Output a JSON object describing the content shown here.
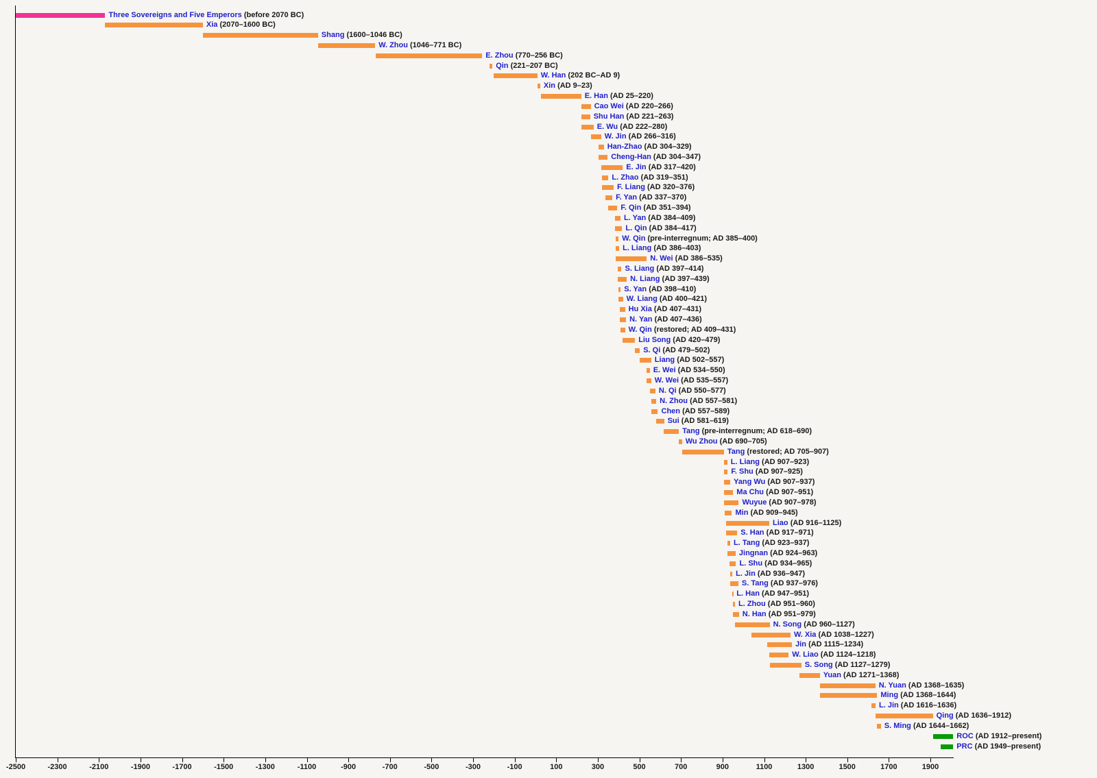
{
  "chart_data": {
    "type": "bar",
    "subtype": "horizontal-timeline-gantt",
    "description": "Timeline of Chinese dynasties",
    "x_axis": {
      "min": -2500,
      "max": 2010,
      "tick_interval": 200,
      "ticks": [
        -2500,
        -2300,
        -2100,
        -1900,
        -1700,
        -1500,
        -1300,
        -1100,
        -900,
        -700,
        -500,
        -300,
        -100,
        100,
        300,
        500,
        700,
        900,
        1100,
        1300,
        1500,
        1700,
        1900
      ]
    },
    "legend_position": "none",
    "grid": false,
    "colors": {
      "bar_orange": "#F6943E",
      "bar_pink": "#F23197",
      "bar_green": "#0A9A0A",
      "name_text": "#2121CC",
      "date_text": "#191919",
      "axis": "#000000",
      "tick_text": "#1A1A1A",
      "background": "#F6F5F2"
    },
    "entries": [
      {
        "name": "Three Sovereigns and Five Emperors",
        "dates": "(before 2070 BC)",
        "start": -2500,
        "end": -2070,
        "color": "pink"
      },
      {
        "name": "Xia",
        "dates": "(2070–1600 BC)",
        "start": -2070,
        "end": -1600,
        "color": "orange"
      },
      {
        "name": "Shang",
        "dates": "(1600–1046 BC)",
        "start": -1600,
        "end": -1046,
        "color": "orange"
      },
      {
        "name": "W. Zhou",
        "dates": "(1046–771 BC)",
        "start": -1046,
        "end": -771,
        "color": "orange"
      },
      {
        "name": "E. Zhou",
        "dates": "(770–256 BC)",
        "start": -770,
        "end": -256,
        "color": "orange"
      },
      {
        "name": "Qin",
        "dates": "(221–207 BC)",
        "start": -221,
        "end": -207,
        "color": "orange"
      },
      {
        "name": "W. Han",
        "dates": "(202 BC–AD 9)",
        "start": -202,
        "end": 9,
        "color": "orange"
      },
      {
        "name": "Xin",
        "dates": "(AD 9–23)",
        "start": 9,
        "end": 23,
        "color": "orange"
      },
      {
        "name": "E. Han",
        "dates": "(AD 25–220)",
        "start": 25,
        "end": 220,
        "color": "orange"
      },
      {
        "name": "Cao Wei",
        "dates": "(AD 220–266)",
        "start": 220,
        "end": 266,
        "color": "orange"
      },
      {
        "name": "Shu Han",
        "dates": "(AD 221–263)",
        "start": 221,
        "end": 263,
        "color": "orange"
      },
      {
        "name": "E. Wu",
        "dates": "(AD 222–280)",
        "start": 222,
        "end": 280,
        "color": "orange"
      },
      {
        "name": "W. Jin",
        "dates": "(AD 266–316)",
        "start": 266,
        "end": 316,
        "color": "orange"
      },
      {
        "name": "Han-Zhao",
        "dates": "(AD 304–329)",
        "start": 304,
        "end": 329,
        "color": "orange"
      },
      {
        "name": "Cheng-Han",
        "dates": "(AD 304–347)",
        "start": 304,
        "end": 347,
        "color": "orange"
      },
      {
        "name": "E. Jin",
        "dates": "(AD 317–420)",
        "start": 317,
        "end": 420,
        "color": "orange"
      },
      {
        "name": "L. Zhao",
        "dates": "(AD 319–351)",
        "start": 319,
        "end": 351,
        "color": "orange"
      },
      {
        "name": "F. Liang",
        "dates": "(AD 320–376)",
        "start": 320,
        "end": 376,
        "color": "orange"
      },
      {
        "name": "F. Yan",
        "dates": "(AD 337–370)",
        "start": 337,
        "end": 370,
        "color": "orange"
      },
      {
        "name": "F. Qin",
        "dates": "(AD 351–394)",
        "start": 351,
        "end": 394,
        "color": "orange"
      },
      {
        "name": "L. Yan",
        "dates": "(AD 384–409)",
        "start": 384,
        "end": 409,
        "color": "orange"
      },
      {
        "name": "L. Qin",
        "dates": "(AD 384–417)",
        "start": 384,
        "end": 417,
        "color": "orange"
      },
      {
        "name": "W. Qin",
        "dates": "(pre-interregnum; AD 385–400)",
        "start": 385,
        "end": 400,
        "color": "orange"
      },
      {
        "name": "L. Liang",
        "dates": "(AD 386–403)",
        "start": 386,
        "end": 403,
        "color": "orange"
      },
      {
        "name": "N. Wei",
        "dates": "(AD 386–535)",
        "start": 386,
        "end": 535,
        "color": "orange"
      },
      {
        "name": "S. Liang",
        "dates": "(AD 397–414)",
        "start": 397,
        "end": 414,
        "color": "orange"
      },
      {
        "name": "N. Liang",
        "dates": "(AD 397–439)",
        "start": 397,
        "end": 439,
        "color": "orange"
      },
      {
        "name": "S. Yan",
        "dates": "(AD 398–410)",
        "start": 398,
        "end": 410,
        "color": "orange"
      },
      {
        "name": "W. Liang",
        "dates": "(AD 400–421)",
        "start": 400,
        "end": 421,
        "color": "orange"
      },
      {
        "name": "Hu Xia",
        "dates": "(AD 407–431)",
        "start": 407,
        "end": 431,
        "color": "orange"
      },
      {
        "name": "N. Yan",
        "dates": "(AD 407–436)",
        "start": 407,
        "end": 436,
        "color": "orange"
      },
      {
        "name": "W. Qin",
        "dates": "(restored; AD 409–431)",
        "start": 409,
        "end": 431,
        "color": "orange"
      },
      {
        "name": "Liu Song",
        "dates": "(AD 420–479)",
        "start": 420,
        "end": 479,
        "color": "orange"
      },
      {
        "name": "S. Qi",
        "dates": "(AD 479–502)",
        "start": 479,
        "end": 502,
        "color": "orange"
      },
      {
        "name": "Liang",
        "dates": "(AD 502–557)",
        "start": 502,
        "end": 557,
        "color": "orange"
      },
      {
        "name": "E. Wei",
        "dates": "(AD 534–550)",
        "start": 534,
        "end": 550,
        "color": "orange"
      },
      {
        "name": "W. Wei",
        "dates": "(AD 535–557)",
        "start": 535,
        "end": 557,
        "color": "orange"
      },
      {
        "name": "N. Qi",
        "dates": "(AD 550–577)",
        "start": 550,
        "end": 577,
        "color": "orange"
      },
      {
        "name": "N. Zhou",
        "dates": "(AD 557–581)",
        "start": 557,
        "end": 581,
        "color": "orange"
      },
      {
        "name": "Chen",
        "dates": "(AD 557–589)",
        "start": 557,
        "end": 589,
        "color": "orange"
      },
      {
        "name": "Sui",
        "dates": "(AD 581–619)",
        "start": 581,
        "end": 619,
        "color": "orange"
      },
      {
        "name": "Tang",
        "dates": "(pre-interregnum; AD 618–690)",
        "start": 618,
        "end": 690,
        "color": "orange"
      },
      {
        "name": "Wu Zhou",
        "dates": "(AD 690–705)",
        "start": 690,
        "end": 705,
        "color": "orange"
      },
      {
        "name": "Tang",
        "dates": "(restored; AD 705–907)",
        "start": 705,
        "end": 907,
        "color": "orange"
      },
      {
        "name": "L. Liang",
        "dates": "(AD 907–923)",
        "start": 907,
        "end": 923,
        "color": "orange"
      },
      {
        "name": "F. Shu",
        "dates": "(AD 907–925)",
        "start": 907,
        "end": 925,
        "color": "orange"
      },
      {
        "name": "Yang Wu",
        "dates": "(AD 907–937)",
        "start": 907,
        "end": 937,
        "color": "orange"
      },
      {
        "name": "Ma Chu",
        "dates": "(AD 907–951)",
        "start": 907,
        "end": 951,
        "color": "orange"
      },
      {
        "name": "Wuyue",
        "dates": "(AD 907–978)",
        "start": 907,
        "end": 978,
        "color": "orange"
      },
      {
        "name": "Min",
        "dates": "(AD 909–945)",
        "start": 909,
        "end": 945,
        "color": "orange"
      },
      {
        "name": "Liao",
        "dates": "(AD 916–1125)",
        "start": 916,
        "end": 1125,
        "color": "orange"
      },
      {
        "name": "S. Han",
        "dates": "(AD 917–971)",
        "start": 917,
        "end": 971,
        "color": "orange"
      },
      {
        "name": "L. Tang",
        "dates": "(AD 923–937)",
        "start": 923,
        "end": 937,
        "color": "orange"
      },
      {
        "name": "Jingnan",
        "dates": "(AD 924–963)",
        "start": 924,
        "end": 963,
        "color": "orange"
      },
      {
        "name": "L. Shu",
        "dates": "(AD 934–965)",
        "start": 934,
        "end": 965,
        "color": "orange"
      },
      {
        "name": "L. Jin",
        "dates": "(AD 936–947)",
        "start": 936,
        "end": 947,
        "color": "orange"
      },
      {
        "name": "S. Tang",
        "dates": "(AD 937–976)",
        "start": 937,
        "end": 976,
        "color": "orange"
      },
      {
        "name": "L. Han",
        "dates": "(AD 947–951)",
        "start": 947,
        "end": 951,
        "color": "orange"
      },
      {
        "name": "L. Zhou",
        "dates": "(AD 951–960)",
        "start": 951,
        "end": 960,
        "color": "orange"
      },
      {
        "name": "N. Han",
        "dates": "(AD 951–979)",
        "start": 951,
        "end": 979,
        "color": "orange"
      },
      {
        "name": "N. Song",
        "dates": "(AD 960–1127)",
        "start": 960,
        "end": 1127,
        "color": "orange"
      },
      {
        "name": "W. Xia",
        "dates": "(AD 1038–1227)",
        "start": 1038,
        "end": 1227,
        "color": "orange"
      },
      {
        "name": "Jin",
        "dates": "(AD 1115–1234)",
        "start": 1115,
        "end": 1234,
        "color": "orange"
      },
      {
        "name": "W. Liao",
        "dates": "(AD 1124–1218)",
        "start": 1124,
        "end": 1218,
        "color": "orange"
      },
      {
        "name": "S. Song",
        "dates": "(AD 1127–1279)",
        "start": 1127,
        "end": 1279,
        "color": "orange"
      },
      {
        "name": "Yuan",
        "dates": "(AD 1271–1368)",
        "start": 1271,
        "end": 1368,
        "color": "orange"
      },
      {
        "name": "N. Yuan",
        "dates": "(AD 1368–1635)",
        "start": 1368,
        "end": 1635,
        "color": "orange"
      },
      {
        "name": "Ming",
        "dates": "(AD 1368–1644)",
        "start": 1368,
        "end": 1644,
        "color": "orange"
      },
      {
        "name": "L. Jin",
        "dates": "(AD 1616–1636)",
        "start": 1616,
        "end": 1636,
        "color": "orange"
      },
      {
        "name": "Qing",
        "dates": "(AD 1636–1912)",
        "start": 1636,
        "end": 1912,
        "color": "orange"
      },
      {
        "name": "S. Ming",
        "dates": "(AD 1644–1662)",
        "start": 1644,
        "end": 1662,
        "color": "orange"
      },
      {
        "name": "ROC",
        "dates": "(AD 1912–present)",
        "start": 1912,
        "end": 2010,
        "color": "green"
      },
      {
        "name": "PRC",
        "dates": "(AD 1949–present)",
        "start": 1949,
        "end": 2010,
        "color": "green"
      }
    ]
  }
}
